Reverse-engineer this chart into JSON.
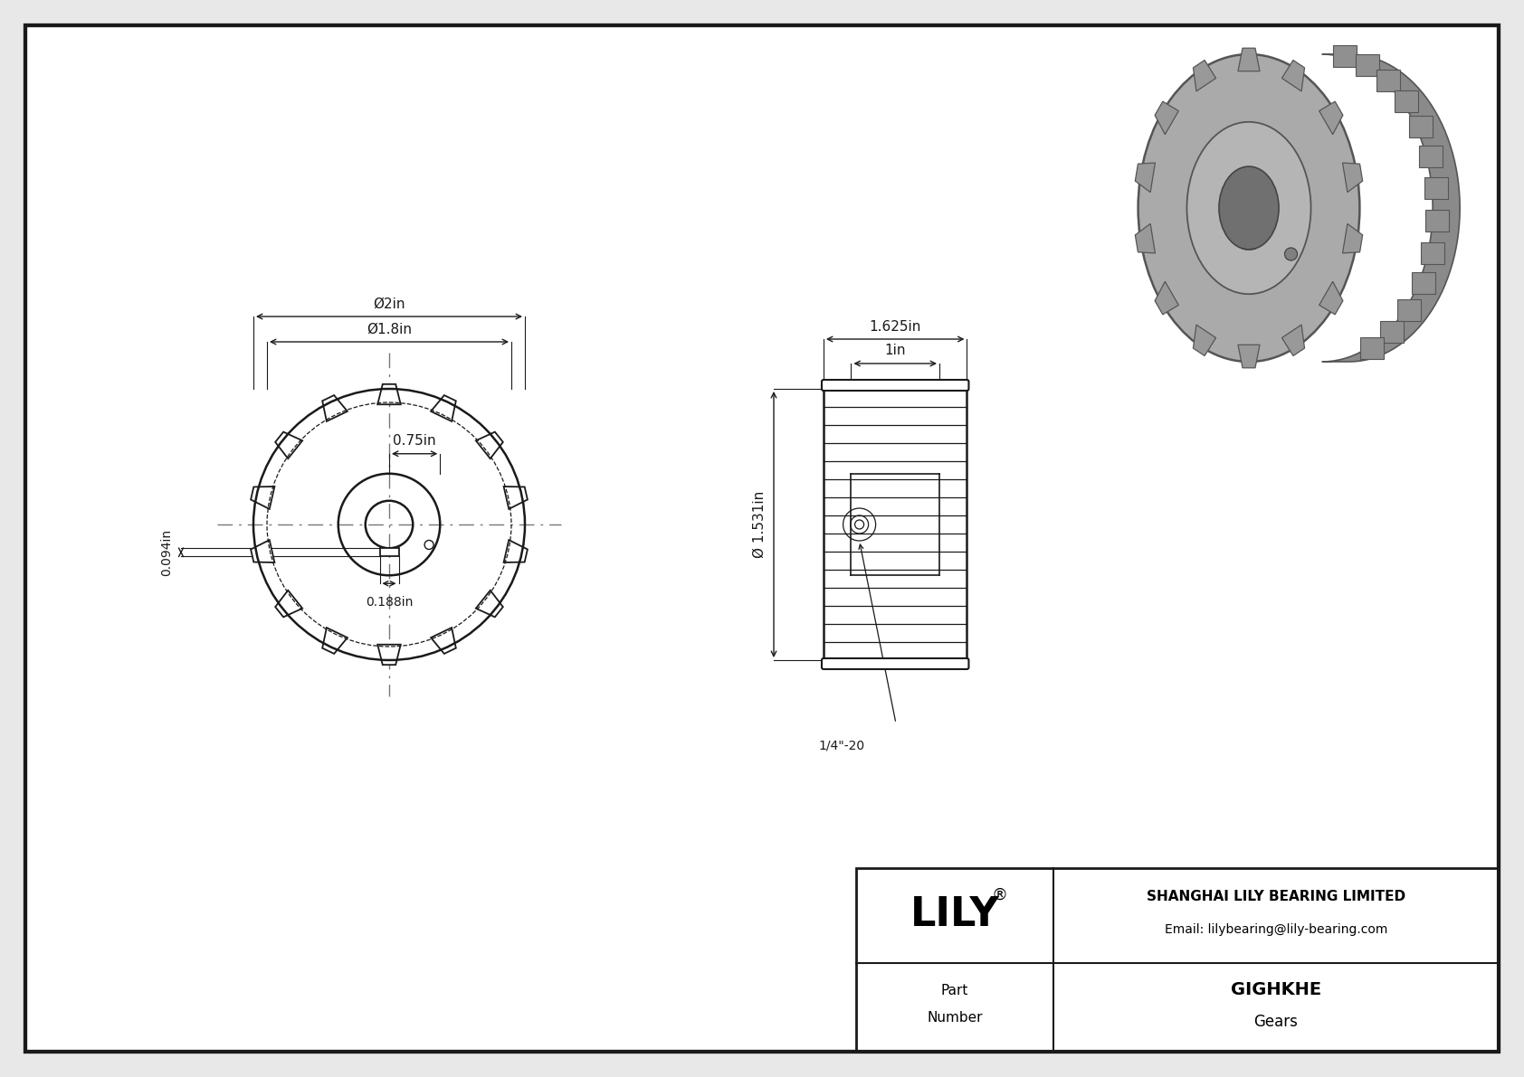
{
  "bg_color": "#e8e8e8",
  "paper_color": "#ffffff",
  "line_color": "#1a1a1a",
  "dim_color": "#1a1a1a",
  "cl_color": "#777777",
  "company": "SHANGHAI LILY BEARING LIMITED",
  "email": "Email: lilybearing@lily-bearing.com",
  "part_number": "GIGHKHE",
  "category": "Gears",
  "dim_od": "Ø2in",
  "dim_pd": "Ø1.8in",
  "dim_hub": "0.75in",
  "dim_face": "1.625in",
  "dim_bore_w": "1in",
  "dim_shaft": "Ø 1.531in",
  "dim_keyway": "0.094in",
  "dim_key": "0.188in",
  "dim_set_screw": "1/4\"-20",
  "num_teeth": 14,
  "photo_gear_color": "#a0a0a0",
  "photo_gear_dark": "#787878",
  "photo_gear_light": "#c0c0c0",
  "photo_tooth_color": "#909090",
  "photo_bg": "#ffffff"
}
